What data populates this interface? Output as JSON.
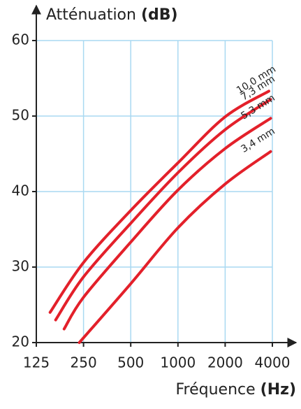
{
  "chart_data": {
    "type": "line",
    "y_label": "Atténuation",
    "y_unit": "(dB)",
    "x_label": "Fréquence",
    "x_unit": "(Hz)",
    "x_scale": "log",
    "grid": true,
    "xlim": [
      125,
      4000
    ],
    "xticks": [
      125,
      250,
      500,
      1000,
      2000,
      4000
    ],
    "ylim": [
      20,
      60
    ],
    "yticks": [
      20,
      30,
      40,
      50,
      60
    ],
    "series": [
      {
        "name": "10,0 mm",
        "color": "#e3202a",
        "x": [
          153,
          250,
          500,
          1000,
          2000,
          3800
        ],
        "values": [
          24,
          30.6,
          37.5,
          43.8,
          49.9,
          53.3
        ]
      },
      {
        "name": "7,3 mm",
        "color": "#e3202a",
        "x": [
          166,
          250,
          500,
          1000,
          2000,
          3900
        ],
        "values": [
          23,
          28.7,
          35.8,
          42.5,
          48.2,
          52.2
        ]
      },
      {
        "name": "5,3 mm",
        "color": "#e3202a",
        "x": [
          188,
          250,
          500,
          1000,
          2000,
          3900
        ],
        "values": [
          21.8,
          26,
          33.3,
          40.2,
          45.7,
          49.7
        ]
      },
      {
        "name": "3,4 mm",
        "color": "#e3202a",
        "x": [
          235,
          500,
          1000,
          2000,
          3900
        ],
        "values": [
          20,
          27.8,
          35.2,
          41,
          45.3
        ]
      }
    ]
  }
}
